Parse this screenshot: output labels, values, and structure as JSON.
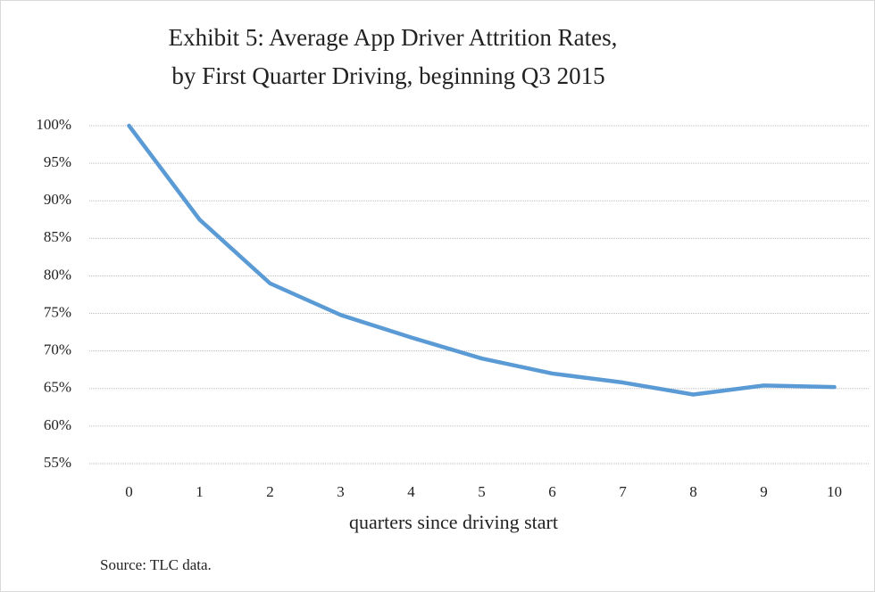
{
  "chart_data": {
    "type": "line",
    "title": [
      "Exhibit  5: Average App Driver Attrition  Rates,",
      "by First Quarter Driving,  beginning  Q3 2015"
    ],
    "x_label": "quarters since driving start",
    "source": "Source: TLC data.",
    "x": [
      0,
      1,
      2,
      3,
      4,
      5,
      6,
      7,
      8,
      9,
      10
    ],
    "series": [
      {
        "color": "#5b9bd5",
        "values": [
          100,
          87.5,
          79,
          74.8,
          71.8,
          69,
          67,
          65.8,
          64.2,
          65.4,
          65.2
        ]
      }
    ],
    "xlim": [
      -0.5,
      10.5
    ],
    "xticks": [
      0,
      1,
      2,
      3,
      4,
      5,
      6,
      7,
      8,
      9,
      10
    ],
    "ylim": [
      55,
      100
    ],
    "yticks": [
      {
        "value": 55,
        "label": "55%"
      },
      {
        "value": 60,
        "label": "60%"
      },
      {
        "value": 65,
        "label": "65%"
      },
      {
        "value": 70,
        "label": "70%"
      },
      {
        "value": 75,
        "label": "75%"
      },
      {
        "value": 80,
        "label": "80%"
      },
      {
        "value": 85,
        "label": "85%"
      },
      {
        "value": 90,
        "label": "90%"
      },
      {
        "value": 95,
        "label": "95%"
      },
      {
        "value": 100,
        "label": "100%"
      }
    ],
    "grid": true
  }
}
